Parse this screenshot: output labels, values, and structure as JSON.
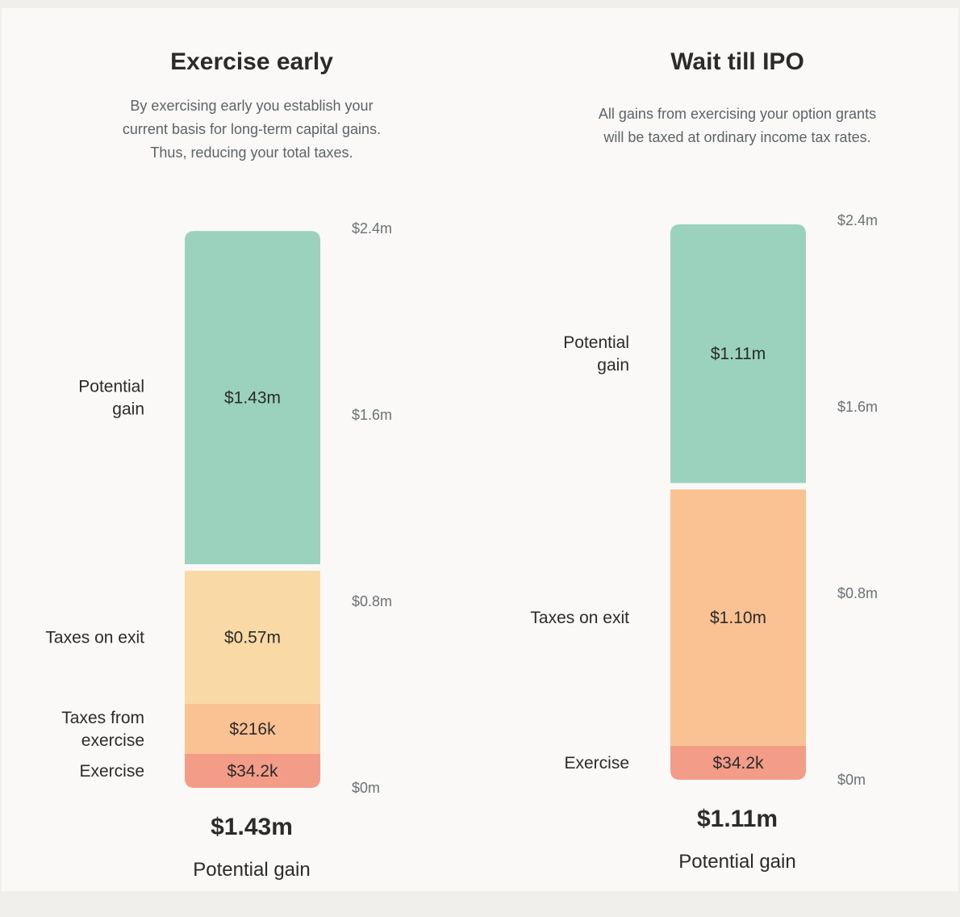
{
  "chart_data": [
    {
      "type": "bar",
      "stacked": true,
      "title": "Exercise early",
      "description": [
        "By exercising early you establish your",
        "current basis for long-term capital gains.",
        "Thus, reducing your total taxes."
      ],
      "ylim": [
        0,
        2.4
      ],
      "y_ticks": [
        {
          "value": 0,
          "label": "$0m"
        },
        {
          "value": 0.8,
          "label": "$0.8m"
        },
        {
          "value": 1.6,
          "label": "$1.6m"
        },
        {
          "value": 2.4,
          "label": "$2.4m"
        }
      ],
      "segments": [
        {
          "name": [
            "Exercise"
          ],
          "value": 0.0342,
          "label": "$34.2k",
          "color": "#f39c88"
        },
        {
          "name": [
            "Taxes from",
            "exercise"
          ],
          "value": 0.216,
          "label": "$216k",
          "color": "#fac193"
        },
        {
          "name": [
            "Taxes on exit"
          ],
          "value": 0.57,
          "label": "$0.57m",
          "color": "#f9daa5"
        },
        {
          "name": [
            "Potential",
            "gain"
          ],
          "value": 1.43,
          "label": "$1.43m",
          "color": "#9ad2bd"
        }
      ],
      "total": {
        "value": "$1.43m",
        "label": "Potential gain"
      }
    },
    {
      "type": "bar",
      "stacked": true,
      "title": "Wait till IPO",
      "description": [
        "All gains from exercising your option grants",
        "will be taxed at ordinary income tax rates."
      ],
      "ylim": [
        0,
        2.4
      ],
      "y_ticks": [
        {
          "value": 0,
          "label": "$0m"
        },
        {
          "value": 0.8,
          "label": "$0.8m"
        },
        {
          "value": 1.6,
          "label": "$1.6m"
        },
        {
          "value": 2.4,
          "label": "$2.4m"
        }
      ],
      "segments": [
        {
          "name": [
            "Exercise"
          ],
          "value": 0.0342,
          "label": "$34.2k",
          "color": "#f39c88"
        },
        {
          "name": [
            "Taxes on exit"
          ],
          "value": 1.1,
          "label": "$1.10m",
          "color": "#fac193"
        },
        {
          "name": [
            "Potential",
            "gain"
          ],
          "value": 1.11,
          "label": "$1.11m",
          "color": "#9ad2bd"
        }
      ],
      "total": {
        "value": "$1.11m",
        "label": "Potential gain"
      }
    }
  ]
}
